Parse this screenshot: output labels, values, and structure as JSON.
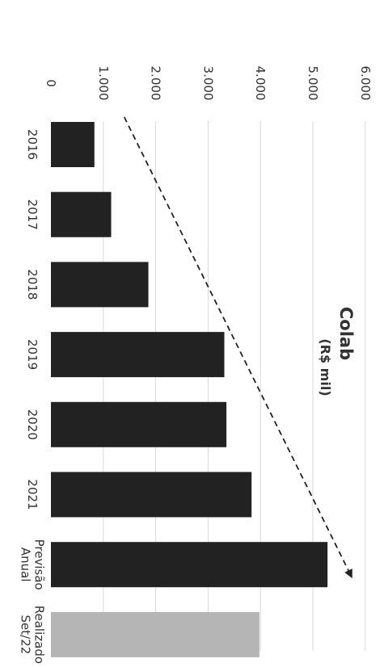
{
  "chart_data": {
    "type": "bar",
    "title": "Colab",
    "subtitle": "(R$ mil)",
    "categories": [
      [
        "2016"
      ],
      [
        "2017"
      ],
      [
        "2018"
      ],
      [
        "2019"
      ],
      [
        "2020"
      ],
      [
        "2021"
      ],
      [
        "Previsão",
        "Anual"
      ],
      [
        "Realizado",
        "Set/22"
      ]
    ],
    "values": [
      830,
      1150,
      1860,
      3310,
      3350,
      3830,
      5280,
      3980
    ],
    "value_axis": {
      "ticks": [
        "0",
        "1.000",
        "2.000",
        "3.000",
        "4.000",
        "5.000",
        "6.000"
      ],
      "tick_values": [
        0,
        1000,
        2000,
        3000,
        4000,
        5000,
        6000
      ],
      "range": [
        0,
        6000
      ],
      "grid": true
    },
    "orientation": "rotated 90° clockwise",
    "colors": {
      "bar": "#222222",
      "bar_highlight": "#b5b5b5",
      "grid": "#d9d9d9",
      "text": "#333333",
      "trend": "#222222"
    },
    "trend_arrow": {
      "style": "dashed",
      "from": {
        "category_index": 0,
        "value": 1400
      },
      "to": {
        "category_index": 6,
        "value": 6000
      }
    }
  }
}
